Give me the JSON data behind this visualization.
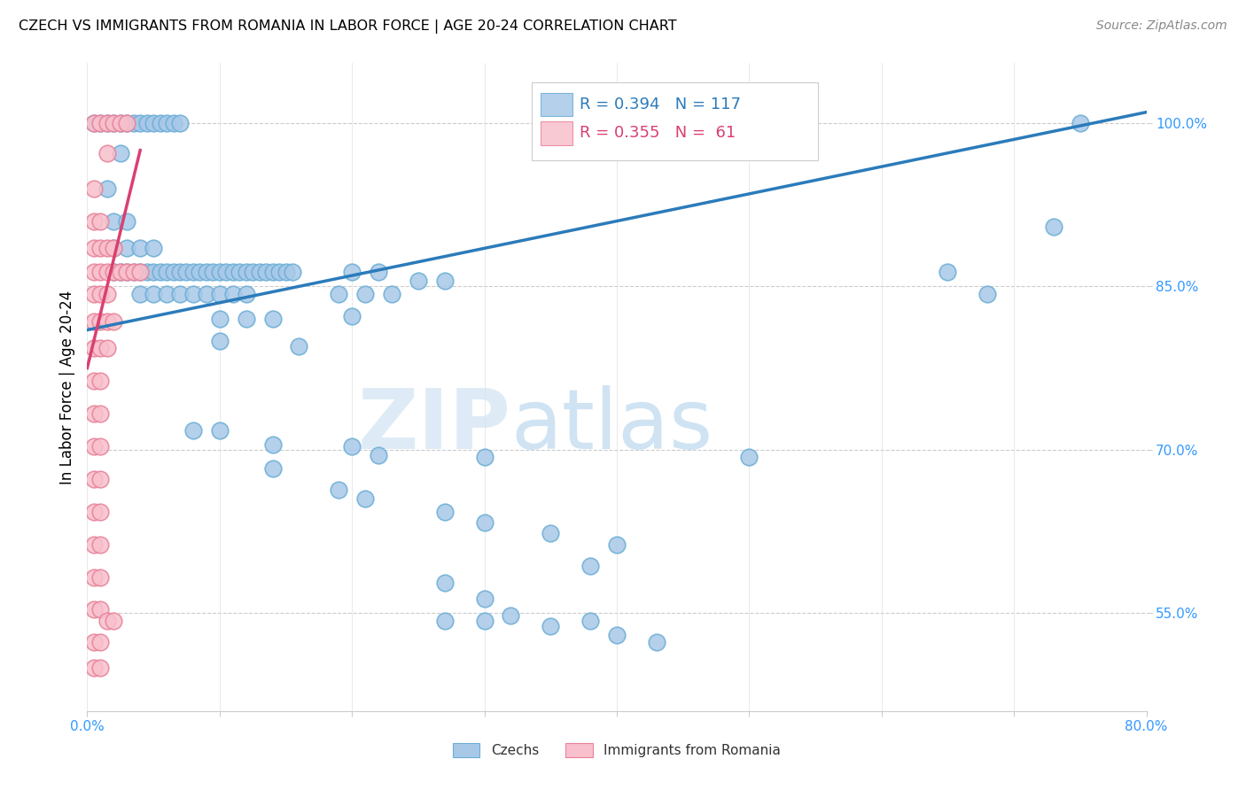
{
  "title": "CZECH VS IMMIGRANTS FROM ROMANIA IN LABOR FORCE | AGE 20-24 CORRELATION CHART",
  "source": "Source: ZipAtlas.com",
  "ylabel": "In Labor Force | Age 20-24",
  "xlabel_ticks": [
    "0.0%",
    "",
    "",
    "",
    "",
    "",
    "",
    "",
    "80.0%"
  ],
  "x_tick_vals": [
    0.0,
    0.1,
    0.2,
    0.3,
    0.4,
    0.5,
    0.6,
    0.7,
    0.8
  ],
  "ylabel_ticks": [
    "100.0%",
    "85.0%",
    "70.0%",
    "55.0%"
  ],
  "y_tick_vals": [
    1.0,
    0.85,
    0.7,
    0.55
  ],
  "xmin": 0.0,
  "xmax": 0.8,
  "ymin": 0.46,
  "ymax": 1.055,
  "watermark_zip": "ZIP",
  "watermark_atlas": "atlas",
  "legend_czech_R": "R = 0.394",
  "legend_czech_N": "N = 117",
  "legend_romania_R": "R = 0.355",
  "legend_romania_N": "N =  61",
  "blue_color": "#a8c8e8",
  "blue_edge_color": "#6baed6",
  "blue_line_color": "#2b7bba",
  "pink_color": "#f8c0cc",
  "pink_edge_color": "#e8829a",
  "pink_line_color": "#d94070",
  "blue_scatter": [
    [
      0.005,
      1.0
    ],
    [
      0.01,
      1.0
    ],
    [
      0.015,
      1.0
    ],
    [
      0.02,
      1.0
    ],
    [
      0.025,
      1.0
    ],
    [
      0.03,
      1.0
    ],
    [
      0.035,
      1.0
    ],
    [
      0.04,
      1.0
    ],
    [
      0.045,
      1.0
    ],
    [
      0.05,
      1.0
    ],
    [
      0.055,
      1.0
    ],
    [
      0.06,
      1.0
    ],
    [
      0.065,
      1.0
    ],
    [
      0.07,
      1.0
    ],
    [
      0.025,
      0.972
    ],
    [
      0.015,
      0.94
    ],
    [
      0.02,
      0.91
    ],
    [
      0.03,
      0.91
    ],
    [
      0.02,
      0.885
    ],
    [
      0.03,
      0.885
    ],
    [
      0.04,
      0.885
    ],
    [
      0.05,
      0.885
    ],
    [
      0.02,
      0.863
    ],
    [
      0.025,
      0.863
    ],
    [
      0.03,
      0.863
    ],
    [
      0.035,
      0.863
    ],
    [
      0.04,
      0.863
    ],
    [
      0.045,
      0.863
    ],
    [
      0.05,
      0.863
    ],
    [
      0.055,
      0.863
    ],
    [
      0.06,
      0.863
    ],
    [
      0.065,
      0.863
    ],
    [
      0.07,
      0.863
    ],
    [
      0.075,
      0.863
    ],
    [
      0.08,
      0.863
    ],
    [
      0.085,
      0.863
    ],
    [
      0.09,
      0.863
    ],
    [
      0.095,
      0.863
    ],
    [
      0.1,
      0.863
    ],
    [
      0.105,
      0.863
    ],
    [
      0.11,
      0.863
    ],
    [
      0.115,
      0.863
    ],
    [
      0.12,
      0.863
    ],
    [
      0.125,
      0.863
    ],
    [
      0.13,
      0.863
    ],
    [
      0.135,
      0.863
    ],
    [
      0.14,
      0.863
    ],
    [
      0.145,
      0.863
    ],
    [
      0.15,
      0.863
    ],
    [
      0.155,
      0.863
    ],
    [
      0.04,
      0.843
    ],
    [
      0.05,
      0.843
    ],
    [
      0.06,
      0.843
    ],
    [
      0.07,
      0.843
    ],
    [
      0.08,
      0.843
    ],
    [
      0.09,
      0.843
    ],
    [
      0.1,
      0.843
    ],
    [
      0.11,
      0.843
    ],
    [
      0.12,
      0.843
    ],
    [
      0.1,
      0.82
    ],
    [
      0.12,
      0.82
    ],
    [
      0.14,
      0.82
    ],
    [
      0.1,
      0.8
    ],
    [
      0.16,
      0.795
    ],
    [
      0.2,
      0.863
    ],
    [
      0.22,
      0.863
    ],
    [
      0.25,
      0.855
    ],
    [
      0.27,
      0.855
    ],
    [
      0.19,
      0.843
    ],
    [
      0.21,
      0.843
    ],
    [
      0.23,
      0.843
    ],
    [
      0.2,
      0.823
    ],
    [
      0.08,
      0.718
    ],
    [
      0.1,
      0.718
    ],
    [
      0.14,
      0.705
    ],
    [
      0.2,
      0.703
    ],
    [
      0.22,
      0.695
    ],
    [
      0.14,
      0.683
    ],
    [
      0.3,
      0.693
    ],
    [
      0.5,
      0.693
    ],
    [
      0.19,
      0.663
    ],
    [
      0.21,
      0.655
    ],
    [
      0.27,
      0.643
    ],
    [
      0.3,
      0.633
    ],
    [
      0.35,
      0.623
    ],
    [
      0.4,
      0.613
    ],
    [
      0.38,
      0.593
    ],
    [
      0.27,
      0.578
    ],
    [
      0.3,
      0.563
    ],
    [
      0.32,
      0.548
    ],
    [
      0.35,
      0.538
    ],
    [
      0.4,
      0.53
    ],
    [
      0.43,
      0.523
    ],
    [
      0.27,
      0.543
    ],
    [
      0.3,
      0.543
    ],
    [
      0.38,
      0.543
    ],
    [
      0.75,
      1.0
    ],
    [
      0.73,
      0.905
    ],
    [
      0.65,
      0.863
    ],
    [
      0.68,
      0.843
    ]
  ],
  "pink_scatter": [
    [
      0.005,
      1.0
    ],
    [
      0.01,
      1.0
    ],
    [
      0.015,
      1.0
    ],
    [
      0.02,
      1.0
    ],
    [
      0.025,
      1.0
    ],
    [
      0.03,
      1.0
    ],
    [
      0.015,
      0.972
    ],
    [
      0.005,
      0.94
    ],
    [
      0.005,
      0.91
    ],
    [
      0.01,
      0.91
    ],
    [
      0.005,
      0.885
    ],
    [
      0.01,
      0.885
    ],
    [
      0.015,
      0.885
    ],
    [
      0.02,
      0.885
    ],
    [
      0.005,
      0.863
    ],
    [
      0.01,
      0.863
    ],
    [
      0.015,
      0.863
    ],
    [
      0.02,
      0.863
    ],
    [
      0.025,
      0.863
    ],
    [
      0.03,
      0.863
    ],
    [
      0.035,
      0.863
    ],
    [
      0.04,
      0.863
    ],
    [
      0.005,
      0.843
    ],
    [
      0.01,
      0.843
    ],
    [
      0.015,
      0.843
    ],
    [
      0.005,
      0.818
    ],
    [
      0.01,
      0.818
    ],
    [
      0.015,
      0.818
    ],
    [
      0.02,
      0.818
    ],
    [
      0.005,
      0.793
    ],
    [
      0.01,
      0.793
    ],
    [
      0.015,
      0.793
    ],
    [
      0.005,
      0.763
    ],
    [
      0.01,
      0.763
    ],
    [
      0.005,
      0.733
    ],
    [
      0.01,
      0.733
    ],
    [
      0.005,
      0.703
    ],
    [
      0.01,
      0.703
    ],
    [
      0.005,
      0.673
    ],
    [
      0.01,
      0.673
    ],
    [
      0.005,
      0.643
    ],
    [
      0.01,
      0.643
    ],
    [
      0.005,
      0.613
    ],
    [
      0.01,
      0.613
    ],
    [
      0.005,
      0.583
    ],
    [
      0.01,
      0.583
    ],
    [
      0.005,
      0.553
    ],
    [
      0.01,
      0.553
    ],
    [
      0.005,
      0.523
    ],
    [
      0.01,
      0.523
    ],
    [
      0.005,
      0.5
    ],
    [
      0.01,
      0.5
    ],
    [
      0.015,
      0.543
    ],
    [
      0.02,
      0.543
    ]
  ],
  "blue_trendline": [
    [
      0.0,
      0.81
    ],
    [
      0.8,
      1.01
    ]
  ],
  "pink_trendline": [
    [
      0.0,
      0.775
    ],
    [
      0.04,
      0.975
    ]
  ]
}
